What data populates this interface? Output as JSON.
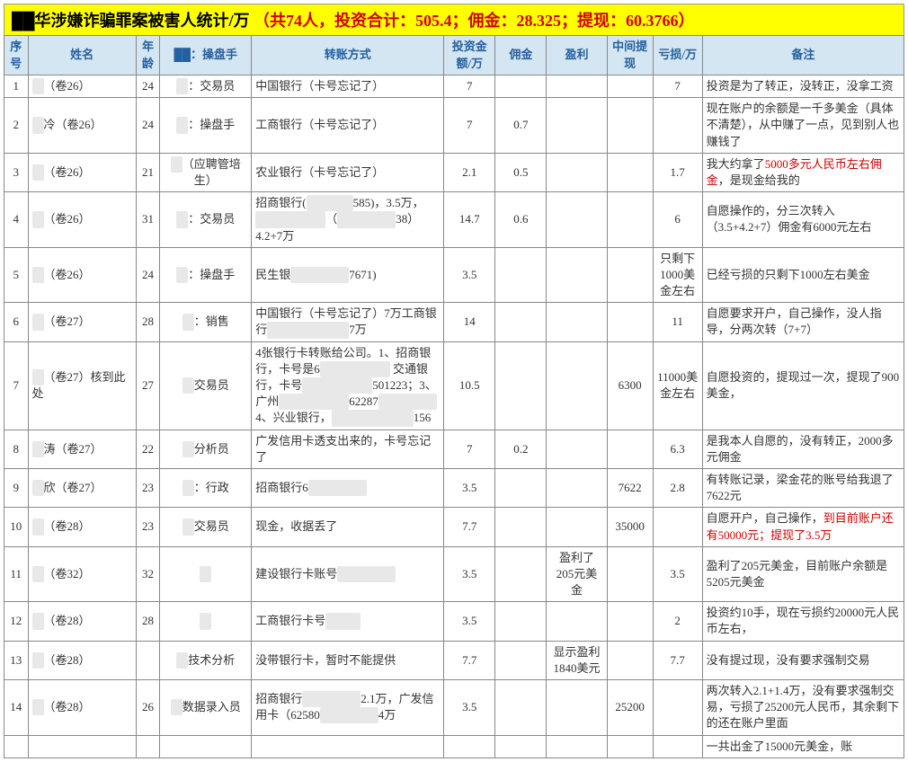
{
  "title": {
    "black": "██华涉嫌诈骗罪案被害人统计/万",
    "red": "（共74人，投资合计：505.4；佣金：28.325；提现：60.3766）"
  },
  "headers": [
    "序号",
    "姓名",
    "年龄",
    "██：操盘手",
    "转账方式",
    "投资金额/万",
    "佣金",
    "盈利",
    "中间提现",
    "亏损/万",
    "备注"
  ],
  "rows": [
    {
      "idx": "1",
      "name": "██（卷26）",
      "age": "24",
      "role": "██：交易员",
      "method": "中国银行（卡号忘记了）",
      "invest": "7",
      "comm": "",
      "profit": "",
      "with": "",
      "loss": "7",
      "remark": "投资是为了转正，没转正，没拿工资"
    },
    {
      "idx": "2",
      "name": "██冷（卷26）",
      "age": "24",
      "role": "██：操盘手",
      "method": "工商银行（卡号忘记了）",
      "invest": "7",
      "comm": "0.7",
      "profit": "",
      "with": "",
      "loss": "",
      "remark": "现在账户的余额是一千多美金（具体不清楚），从中赚了一点，见到别人也赚钱了"
    },
    {
      "idx": "3",
      "name": "██（卷26）",
      "age": "21",
      "role": "██（应聘管培生）",
      "method": "农业银行（卡号忘记了）",
      "invest": "2.1",
      "comm": "0.5",
      "profit": "",
      "with": "",
      "loss": "1.7",
      "remark": "我大约拿了<span class=\"red\">5000多元人民币左右佣金</span>，是现金给我的"
    },
    {
      "idx": "4",
      "name": "██（卷26）",
      "age": "31",
      "role": "██：交易员",
      "method": "招商银行(████████585)，3.5万，███████████（█████████38）4.2+7万",
      "invest": "14.7",
      "comm": "0.6",
      "profit": "",
      "with": "",
      "loss": "6",
      "remark": "自愿操作的，分三次转入（3.5+4.2+7）佣金有6000元左右"
    },
    {
      "idx": "5",
      "name": "██（卷26）",
      "age": "24",
      "role": "██：操盘手",
      "method": "民生银██████████7671)",
      "invest": "3.5",
      "comm": "",
      "profit": "",
      "with": "",
      "loss": "只剩下1000美金左右",
      "remark": "已经亏损的只剩下1000左右美金"
    },
    {
      "idx": "6",
      "name": "██（卷27）",
      "age": "28",
      "role": "██：销售",
      "method": "中国银行（卡号忘记了）7万工商银行██████████████7万",
      "invest": "14",
      "comm": "",
      "profit": "",
      "with": "",
      "loss": "11",
      "remark": "自愿要求开户，自己操作，没人指导，分两次转（7+7）"
    },
    {
      "idx": "7",
      "name": "██（卷27）核到此处",
      "age": "27",
      "role": "██交易员",
      "method": "4张银行卡转账给公司。1、招商银行，卡号是6████████████ 交通银行，卡号████████████501223；3、广州████████████62287██████████4、兴业银行，██████████████156",
      "invest": "10.5",
      "comm": "",
      "profit": "",
      "with": "6300",
      "loss": "11000美金左右",
      "remark": "自愿投资的，提现过一次，提现了900美金，"
    },
    {
      "idx": "8",
      "name": "██涛（卷27）",
      "age": "22",
      "role": "██分析员",
      "method": "广发信用卡透支出来的，卡号忘记了",
      "invest": "7",
      "comm": "0.2",
      "profit": "",
      "with": "",
      "loss": "6.3",
      "remark": "是我本人自愿的，没有转正，2000多元佣金"
    },
    {
      "idx": "9",
      "name": "██欣（卷27）",
      "age": "23",
      "role": "██：行政",
      "method": "招商银行6██████████",
      "invest": "3.5",
      "comm": "",
      "profit": "",
      "with": "7622",
      "loss": "2.8",
      "remark": "有转账记录，梁金花的账号给我退了7622元"
    },
    {
      "idx": "10",
      "name": "██（卷28）",
      "age": "23",
      "role": "██交易员",
      "method": "现金，收据丢了",
      "invest": "7.7",
      "comm": "",
      "profit": "",
      "with": "35000",
      "loss": "",
      "remark": "自愿开户，自己操作，<span class=\"red\">到目前账户还有50000元；提现了3.5万</span>"
    },
    {
      "idx": "11",
      "name": "██（卷32）",
      "age": "32",
      "role": "██",
      "method": "建设银行卡账号██████████",
      "invest": "3.5",
      "comm": "",
      "profit": "盈利了205元美金",
      "with": "",
      "loss": "3.5",
      "remark": "盈利了205元美金，目前账户余额是5205元美金"
    },
    {
      "idx": "12",
      "name": "██（卷28）",
      "age": "28",
      "role": "██",
      "method": "工商银行卡号██████",
      "invest": "3.5",
      "comm": "",
      "profit": "",
      "with": "",
      "loss": "2",
      "remark": "投资约10手，现在亏损约20000元人民币左右，"
    },
    {
      "idx": "13",
      "name": "██（卷28）",
      "age": "",
      "role": "██技术分析",
      "method": "没带银行卡，暂时不能提供",
      "invest": "7.7",
      "comm": "",
      "profit": "显示盈利1840美元",
      "with": "",
      "loss": "7.7",
      "remark": "没有提过现，没有要求强制交易"
    },
    {
      "idx": "14",
      "name": "██（卷28）",
      "age": "26",
      "role": "██数据录入员",
      "method": "招商银行██████████2.1万，广发信用卡（62580█████████4万",
      "invest": "3.5",
      "comm": "",
      "profit": "",
      "with": "25200",
      "loss": "",
      "remark": "两次转入2.1+1.4万，没有要求强制交易，亏损了25200元人民币，其余剩下的还在账户里面"
    },
    {
      "idx": "",
      "name": "",
      "age": "",
      "role": "",
      "method": "",
      "invest": "",
      "comm": "",
      "profit": "",
      "with": "",
      "loss": "",
      "remark": "一共出金了15000元美金，账"
    }
  ]
}
